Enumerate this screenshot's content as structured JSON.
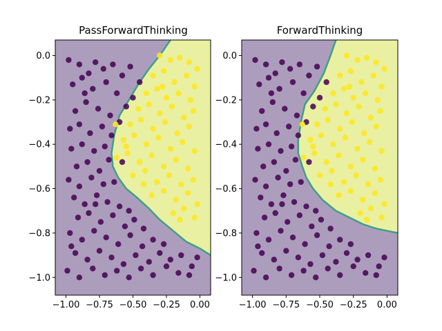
{
  "chart_data": [
    {
      "type": "scatter",
      "title": "PassForwardThinking",
      "xlim": [
        -1.08,
        0.08
      ],
      "ylim": [
        -1.08,
        0.07
      ],
      "x_ticks": [
        "−1.00",
        "−0.75",
        "−0.50",
        "−0.25",
        "0.00"
      ],
      "x_tick_values": [
        -1.0,
        -0.75,
        -0.5,
        -0.25,
        0.0
      ],
      "y_ticks": [
        "0.0",
        "−0.2",
        "−0.4",
        "−0.6",
        "−0.8",
        "−1.0"
      ],
      "y_tick_values": [
        0.0,
        -0.2,
        -0.4,
        -0.6,
        -0.8,
        -1.0
      ],
      "regions": [
        {
          "label": "class 0",
          "color": "#ad9dbc"
        },
        {
          "label": "class 1",
          "color": "#eaf0a1"
        }
      ],
      "boundary": [
        [
          -0.22,
          0.07
        ],
        [
          -0.3,
          0.0
        ],
        [
          -0.38,
          -0.06
        ],
        [
          -0.45,
          -0.12
        ],
        [
          -0.53,
          -0.2
        ],
        [
          -0.6,
          -0.27
        ],
        [
          -0.64,
          -0.36
        ],
        [
          -0.66,
          -0.44
        ],
        [
          -0.65,
          -0.5
        ],
        [
          -0.61,
          -0.55
        ],
        [
          -0.55,
          -0.6
        ],
        [
          -0.47,
          -0.64
        ],
        [
          -0.38,
          -0.69
        ],
        [
          -0.3,
          -0.74
        ],
        [
          -0.2,
          -0.79
        ],
        [
          -0.1,
          -0.84
        ],
        [
          0.0,
          -0.87
        ],
        [
          0.08,
          -0.9
        ]
      ],
      "class0_points": [
        [
          -0.98,
          -0.02
        ],
        [
          -0.9,
          -0.04
        ],
        [
          -0.83,
          -0.08
        ],
        [
          -0.78,
          -0.03
        ],
        [
          -0.72,
          -0.06
        ],
        [
          -0.65,
          -0.04
        ],
        [
          -0.58,
          -0.09
        ],
        [
          -0.52,
          -0.05
        ],
        [
          -0.45,
          -0.12
        ],
        [
          -0.95,
          -0.13
        ],
        [
          -0.88,
          -0.1
        ],
        [
          -0.8,
          -0.15
        ],
        [
          -0.7,
          -0.12
        ],
        [
          -0.62,
          -0.17
        ],
        [
          -0.55,
          -0.23
        ],
        [
          -0.5,
          -0.19
        ],
        [
          -0.93,
          -0.25
        ],
        [
          -0.85,
          -0.21
        ],
        [
          -0.76,
          -0.24
        ],
        [
          -0.67,
          -0.27
        ],
        [
          -0.6,
          -0.3
        ],
        [
          -0.97,
          -0.33
        ],
        [
          -0.9,
          -0.31
        ],
        [
          -0.82,
          -0.35
        ],
        [
          -0.73,
          -0.32
        ],
        [
          -0.66,
          -0.36
        ],
        [
          -0.96,
          -0.42
        ],
        [
          -0.88,
          -0.4
        ],
        [
          -0.79,
          -0.43
        ],
        [
          -0.71,
          -0.41
        ],
        [
          -0.92,
          -0.5
        ],
        [
          -0.84,
          -0.48
        ],
        [
          -0.75,
          -0.52
        ],
        [
          -0.68,
          -0.47
        ],
        [
          -0.98,
          -0.56
        ],
        [
          -0.9,
          -0.59
        ],
        [
          -0.81,
          -0.55
        ],
        [
          -0.72,
          -0.58
        ],
        [
          -0.64,
          -0.57
        ],
        [
          -0.94,
          -0.64
        ],
        [
          -0.86,
          -0.67
        ],
        [
          -0.77,
          -0.63
        ],
        [
          -0.69,
          -0.66
        ],
        [
          -0.6,
          -0.68
        ],
        [
          -0.53,
          -0.7
        ],
        [
          -0.91,
          -0.73
        ],
        [
          -0.83,
          -0.71
        ],
        [
          -0.74,
          -0.75
        ],
        [
          -0.65,
          -0.72
        ],
        [
          -0.56,
          -0.77
        ],
        [
          -0.49,
          -0.74
        ],
        [
          -0.42,
          -0.78
        ],
        [
          -0.97,
          -0.8
        ],
        [
          -0.88,
          -0.83
        ],
        [
          -0.79,
          -0.79
        ],
        [
          -0.7,
          -0.82
        ],
        [
          -0.61,
          -0.85
        ],
        [
          -0.52,
          -0.81
        ],
        [
          -0.43,
          -0.86
        ],
        [
          -0.35,
          -0.83
        ],
        [
          -0.27,
          -0.85
        ],
        [
          -0.93,
          -0.89
        ],
        [
          -0.84,
          -0.92
        ],
        [
          -0.75,
          -0.88
        ],
        [
          -0.66,
          -0.91
        ],
        [
          -0.57,
          -0.94
        ],
        [
          -0.48,
          -0.9
        ],
        [
          -0.38,
          -0.93
        ],
        [
          -0.3,
          -0.89
        ],
        [
          -0.22,
          -0.92
        ],
        [
          -0.14,
          -0.9
        ],
        [
          -0.06,
          -0.95
        ],
        [
          -0.99,
          -0.97
        ],
        [
          -0.9,
          -1.0
        ],
        [
          -0.8,
          -0.96
        ],
        [
          -0.71,
          -0.99
        ],
        [
          -0.62,
          -0.97
        ],
        [
          -0.53,
          -1.0
        ],
        [
          -0.44,
          -0.96
        ],
        [
          -0.35,
          -0.99
        ],
        [
          -0.25,
          -0.95
        ],
        [
          -0.16,
          -0.98
        ],
        [
          -0.08,
          -0.99
        ],
        [
          -0.02,
          -0.91
        ],
        [
          -0.96,
          -0.86
        ],
        [
          -0.78,
          -0.67
        ],
        [
          -0.86,
          -0.17
        ],
        [
          -0.58,
          -0.48
        ]
      ],
      "class1_points": [
        [
          -0.3,
          0.0
        ],
        [
          -0.22,
          -0.02
        ],
        [
          -0.15,
          -0.01
        ],
        [
          -0.08,
          -0.03
        ],
        [
          -0.02,
          -0.06
        ],
        [
          -0.35,
          -0.09
        ],
        [
          -0.27,
          -0.07
        ],
        [
          -0.19,
          -0.12
        ],
        [
          -0.1,
          -0.09
        ],
        [
          -0.04,
          -0.14
        ],
        [
          -0.4,
          -0.17
        ],
        [
          -0.32,
          -0.15
        ],
        [
          -0.25,
          -0.19
        ],
        [
          -0.16,
          -0.17
        ],
        [
          -0.07,
          -0.2
        ],
        [
          -0.46,
          -0.24
        ],
        [
          -0.38,
          -0.22
        ],
        [
          -0.3,
          -0.26
        ],
        [
          -0.21,
          -0.23
        ],
        [
          -0.12,
          -0.28
        ],
        [
          -0.05,
          -0.25
        ],
        [
          -0.52,
          -0.31
        ],
        [
          -0.44,
          -0.29
        ],
        [
          -0.35,
          -0.33
        ],
        [
          -0.26,
          -0.3
        ],
        [
          -0.17,
          -0.35
        ],
        [
          -0.08,
          -0.32
        ],
        [
          -0.57,
          -0.38
        ],
        [
          -0.49,
          -0.36
        ],
        [
          -0.4,
          -0.4
        ],
        [
          -0.31,
          -0.37
        ],
        [
          -0.22,
          -0.42
        ],
        [
          -0.13,
          -0.39
        ],
        [
          -0.04,
          -0.43
        ],
        [
          -0.62,
          -0.46
        ],
        [
          -0.54,
          -0.44
        ],
        [
          -0.45,
          -0.48
        ],
        [
          -0.36,
          -0.45
        ],
        [
          -0.27,
          -0.5
        ],
        [
          -0.18,
          -0.47
        ],
        [
          -0.09,
          -0.51
        ],
        [
          -0.5,
          -0.54
        ],
        [
          -0.41,
          -0.52
        ],
        [
          -0.32,
          -0.57
        ],
        [
          -0.23,
          -0.54
        ],
        [
          -0.14,
          -0.58
        ],
        [
          -0.05,
          -0.56
        ],
        [
          -0.36,
          -0.63
        ],
        [
          -0.27,
          -0.61
        ],
        [
          -0.18,
          -0.65
        ],
        [
          -0.09,
          -0.62
        ],
        [
          -0.02,
          -0.67
        ],
        [
          -0.2,
          -0.71
        ],
        [
          -0.12,
          -0.69
        ],
        [
          -0.04,
          -0.73
        ],
        [
          -0.63,
          -0.31
        ],
        [
          -0.55,
          -0.41
        ],
        [
          -0.28,
          -0.14
        ],
        [
          -0.42,
          -0.58
        ],
        [
          -0.15,
          -0.74
        ]
      ]
    },
    {
      "type": "scatter",
      "title": "ForwardThinking",
      "xlim": [
        -1.08,
        0.08
      ],
      "ylim": [
        -1.08,
        0.07
      ],
      "x_ticks": [
        "−1.00",
        "−0.75",
        "−0.50",
        "−0.25",
        "0.00"
      ],
      "x_tick_values": [
        -1.0,
        -0.75,
        -0.5,
        -0.25,
        0.0
      ],
      "y_ticks": [
        "0.0",
        "−0.2",
        "−0.4",
        "−0.6",
        "−0.8",
        "−1.0"
      ],
      "y_tick_values": [
        0.0,
        -0.2,
        -0.4,
        -0.6,
        -0.8,
        -1.0
      ],
      "regions": [
        {
          "label": "class 0",
          "color": "#ad9dbc"
        },
        {
          "label": "class 1",
          "color": "#eaf0a1"
        }
      ],
      "boundary": [
        [
          -0.38,
          0.07
        ],
        [
          -0.42,
          0.0
        ],
        [
          -0.47,
          -0.08
        ],
        [
          -0.54,
          -0.16
        ],
        [
          -0.61,
          -0.22
        ],
        [
          -0.64,
          -0.3
        ],
        [
          -0.66,
          -0.38
        ],
        [
          -0.66,
          -0.44
        ],
        [
          -0.63,
          -0.5
        ],
        [
          -0.6,
          -0.55
        ],
        [
          -0.55,
          -0.6
        ],
        [
          -0.48,
          -0.65
        ],
        [
          -0.38,
          -0.7
        ],
        [
          -0.28,
          -0.73
        ],
        [
          -0.18,
          -0.76
        ],
        [
          -0.08,
          -0.78
        ],
        [
          0.0,
          -0.79
        ],
        [
          0.08,
          -0.8
        ]
      ],
      "class0_points": [
        [
          -0.98,
          -0.02
        ],
        [
          -0.9,
          -0.04
        ],
        [
          -0.83,
          -0.08
        ],
        [
          -0.78,
          -0.03
        ],
        [
          -0.72,
          -0.06
        ],
        [
          -0.65,
          -0.04
        ],
        [
          -0.58,
          -0.09
        ],
        [
          -0.52,
          -0.05
        ],
        [
          -0.45,
          -0.12
        ],
        [
          -0.95,
          -0.13
        ],
        [
          -0.88,
          -0.1
        ],
        [
          -0.8,
          -0.15
        ],
        [
          -0.7,
          -0.12
        ],
        [
          -0.62,
          -0.17
        ],
        [
          -0.55,
          -0.23
        ],
        [
          -0.5,
          -0.19
        ],
        [
          -0.93,
          -0.25
        ],
        [
          -0.85,
          -0.21
        ],
        [
          -0.76,
          -0.24
        ],
        [
          -0.67,
          -0.27
        ],
        [
          -0.6,
          -0.3
        ],
        [
          -0.97,
          -0.33
        ],
        [
          -0.9,
          -0.31
        ],
        [
          -0.82,
          -0.35
        ],
        [
          -0.73,
          -0.32
        ],
        [
          -0.66,
          -0.36
        ],
        [
          -0.96,
          -0.42
        ],
        [
          -0.88,
          -0.4
        ],
        [
          -0.79,
          -0.43
        ],
        [
          -0.71,
          -0.41
        ],
        [
          -0.92,
          -0.5
        ],
        [
          -0.84,
          -0.48
        ],
        [
          -0.75,
          -0.52
        ],
        [
          -0.68,
          -0.47
        ],
        [
          -0.98,
          -0.56
        ],
        [
          -0.9,
          -0.59
        ],
        [
          -0.81,
          -0.55
        ],
        [
          -0.72,
          -0.58
        ],
        [
          -0.64,
          -0.57
        ],
        [
          -0.94,
          -0.64
        ],
        [
          -0.86,
          -0.67
        ],
        [
          -0.77,
          -0.63
        ],
        [
          -0.69,
          -0.66
        ],
        [
          -0.6,
          -0.68
        ],
        [
          -0.53,
          -0.7
        ],
        [
          -0.91,
          -0.73
        ],
        [
          -0.83,
          -0.71
        ],
        [
          -0.74,
          -0.75
        ],
        [
          -0.65,
          -0.72
        ],
        [
          -0.56,
          -0.77
        ],
        [
          -0.49,
          -0.74
        ],
        [
          -0.42,
          -0.78
        ],
        [
          -0.97,
          -0.8
        ],
        [
          -0.88,
          -0.83
        ],
        [
          -0.79,
          -0.79
        ],
        [
          -0.7,
          -0.82
        ],
        [
          -0.61,
          -0.85
        ],
        [
          -0.52,
          -0.81
        ],
        [
          -0.43,
          -0.86
        ],
        [
          -0.35,
          -0.83
        ],
        [
          -0.27,
          -0.85
        ],
        [
          -0.93,
          -0.89
        ],
        [
          -0.84,
          -0.92
        ],
        [
          -0.75,
          -0.88
        ],
        [
          -0.66,
          -0.91
        ],
        [
          -0.57,
          -0.94
        ],
        [
          -0.48,
          -0.9
        ],
        [
          -0.38,
          -0.93
        ],
        [
          -0.3,
          -0.89
        ],
        [
          -0.22,
          -0.92
        ],
        [
          -0.14,
          -0.9
        ],
        [
          -0.06,
          -0.95
        ],
        [
          -0.99,
          -0.97
        ],
        [
          -0.9,
          -1.0
        ],
        [
          -0.8,
          -0.96
        ],
        [
          -0.71,
          -0.99
        ],
        [
          -0.62,
          -0.97
        ],
        [
          -0.53,
          -1.0
        ],
        [
          -0.44,
          -0.96
        ],
        [
          -0.35,
          -0.99
        ],
        [
          -0.25,
          -0.95
        ],
        [
          -0.16,
          -0.98
        ],
        [
          -0.08,
          -0.99
        ],
        [
          -0.02,
          -0.91
        ],
        [
          -0.96,
          -0.86
        ],
        [
          -0.78,
          -0.67
        ],
        [
          -0.86,
          -0.17
        ],
        [
          -0.58,
          -0.48
        ]
      ],
      "class1_points": [
        [
          -0.3,
          0.0
        ],
        [
          -0.22,
          -0.02
        ],
        [
          -0.15,
          -0.01
        ],
        [
          -0.08,
          -0.03
        ],
        [
          -0.02,
          -0.06
        ],
        [
          -0.35,
          -0.09
        ],
        [
          -0.27,
          -0.07
        ],
        [
          -0.19,
          -0.12
        ],
        [
          -0.1,
          -0.09
        ],
        [
          -0.04,
          -0.14
        ],
        [
          -0.4,
          -0.17
        ],
        [
          -0.32,
          -0.15
        ],
        [
          -0.25,
          -0.19
        ],
        [
          -0.16,
          -0.17
        ],
        [
          -0.07,
          -0.2
        ],
        [
          -0.46,
          -0.24
        ],
        [
          -0.38,
          -0.22
        ],
        [
          -0.3,
          -0.26
        ],
        [
          -0.21,
          -0.23
        ],
        [
          -0.12,
          -0.28
        ],
        [
          -0.05,
          -0.25
        ],
        [
          -0.52,
          -0.31
        ],
        [
          -0.44,
          -0.29
        ],
        [
          -0.35,
          -0.33
        ],
        [
          -0.26,
          -0.3
        ],
        [
          -0.17,
          -0.35
        ],
        [
          -0.08,
          -0.32
        ],
        [
          -0.57,
          -0.38
        ],
        [
          -0.49,
          -0.36
        ],
        [
          -0.4,
          -0.4
        ],
        [
          -0.31,
          -0.37
        ],
        [
          -0.22,
          -0.42
        ],
        [
          -0.13,
          -0.39
        ],
        [
          -0.04,
          -0.43
        ],
        [
          -0.62,
          -0.46
        ],
        [
          -0.54,
          -0.44
        ],
        [
          -0.45,
          -0.48
        ],
        [
          -0.36,
          -0.45
        ],
        [
          -0.27,
          -0.5
        ],
        [
          -0.18,
          -0.47
        ],
        [
          -0.09,
          -0.51
        ],
        [
          -0.5,
          -0.54
        ],
        [
          -0.41,
          -0.52
        ],
        [
          -0.32,
          -0.57
        ],
        [
          -0.23,
          -0.54
        ],
        [
          -0.14,
          -0.58
        ],
        [
          -0.05,
          -0.56
        ],
        [
          -0.36,
          -0.63
        ],
        [
          -0.27,
          -0.61
        ],
        [
          -0.18,
          -0.65
        ],
        [
          -0.09,
          -0.62
        ],
        [
          -0.02,
          -0.67
        ],
        [
          -0.2,
          -0.71
        ],
        [
          -0.12,
          -0.69
        ],
        [
          -0.04,
          -0.73
        ],
        [
          -0.63,
          -0.31
        ],
        [
          -0.55,
          -0.41
        ],
        [
          -0.28,
          -0.14
        ],
        [
          -0.42,
          -0.58
        ],
        [
          -0.15,
          -0.74
        ]
      ]
    }
  ],
  "colors": {
    "class0_point": "#440154",
    "class1_point": "#fde725",
    "boundary_line": "#3ba08a"
  }
}
